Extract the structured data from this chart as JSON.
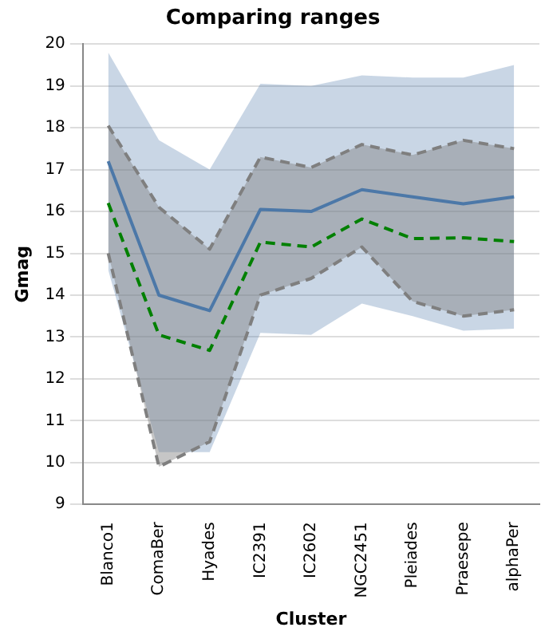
{
  "chart_data": {
    "type": "line",
    "title": "Comparing ranges",
    "xlabel": "Cluster",
    "ylabel": "Gmag",
    "categories": [
      "Blanco1",
      "ComaBer",
      "Hyades",
      "IC2391",
      "IC2602",
      "NGC2451",
      "Pleiades",
      "Praesepe",
      "alphaPer"
    ],
    "series": [
      {
        "color": "#4c78a8",
        "values": [
          17.2,
          14.0,
          13.63,
          16.05,
          16.0,
          16.52,
          16.35,
          16.18,
          16.35
        ],
        "lower": [
          14.6,
          10.25,
          10.25,
          13.1,
          13.05,
          13.8,
          13.5,
          13.15,
          13.2
        ],
        "upper": [
          19.8,
          17.7,
          17.0,
          19.05,
          19.0,
          19.25,
          19.2,
          19.2,
          19.5
        ]
      },
      {
        "color": "#008000",
        "line_style": "dashed",
        "values": [
          16.2,
          13.05,
          12.68,
          15.27,
          15.15,
          15.82,
          15.35,
          15.37,
          15.28
        ],
        "lower": [
          15.0,
          9.9,
          10.5,
          14.0,
          14.4,
          15.15,
          13.85,
          13.5,
          13.65
        ],
        "upper": [
          18.05,
          16.1,
          15.1,
          17.3,
          17.05,
          17.6,
          17.35,
          17.7,
          17.5
        ]
      },
      {
        "color": "#7f7f7f",
        "line_style": "dashed",
        "values": [
          18.05,
          16.1,
          15.1,
          17.3,
          17.05,
          17.6,
          17.35,
          17.7,
          17.5
        ]
      },
      {
        "color": "#7f7f7f",
        "line_style": "dashed",
        "values": [
          15.0,
          9.9,
          10.5,
          14.0,
          14.4,
          15.15,
          13.85,
          13.5,
          13.65
        ]
      }
    ],
    "ylim": [
      9,
      20
    ],
    "yticks": [
      9,
      10,
      11,
      12,
      13,
      14,
      15,
      16,
      17,
      18,
      19,
      20
    ],
    "grid": "y",
    "marker": "none",
    "legend": false
  }
}
